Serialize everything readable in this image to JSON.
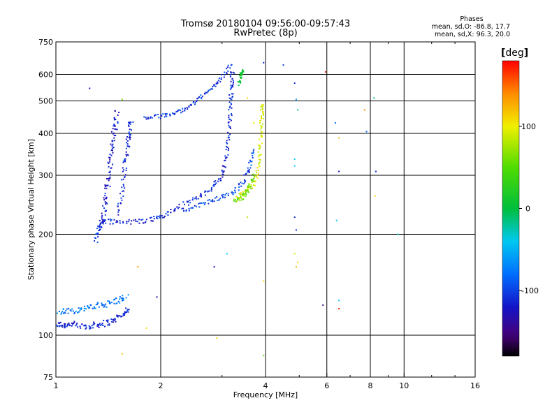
{
  "header": {
    "title_line1": "Tromsø 20180104 09:56:00-09:57:43",
    "title_line2": "RwPretec (8p)"
  },
  "phases_box": {
    "title": "Phases",
    "line_o": "mean, sd,O: -86.8, 17.7",
    "line_x": "mean, sd,X:  96.3, 20.0"
  },
  "colorbar": {
    "unit": "deg",
    "ticks": [
      {
        "label": "100",
        "value": 100
      },
      {
        "label": "0",
        "value": 0
      },
      {
        "label": "-100",
        "value": -100
      }
    ],
    "range": [
      -180,
      180
    ]
  },
  "chart_data": {
    "type": "scatter",
    "xlabel": "Frequency [MHz]",
    "ylabel": "Stationary phase Virtual Height [km]",
    "x_scale": "log",
    "y_scale": "log",
    "xlim": [
      1,
      16
    ],
    "ylim": [
      75,
      750
    ],
    "xticks": [
      {
        "label": "1",
        "value": 1
      },
      {
        "label": "2",
        "value": 2
      },
      {
        "label": "4",
        "value": 4
      },
      {
        "label": "6",
        "value": 6
      },
      {
        "label": "8",
        "value": 8
      },
      {
        "label": "10",
        "value": 10
      },
      {
        "label": "16",
        "value": 16
      }
    ],
    "yticks": [
      {
        "label": "75",
        "value": 75
      },
      {
        "label": "100",
        "value": 100
      },
      {
        "label": "200",
        "value": 200
      },
      {
        "label": "300",
        "value": 300
      },
      {
        "label": "400",
        "value": 400
      },
      {
        "label": "500",
        "value": 500
      },
      {
        "label": "600",
        "value": 600
      },
      {
        "label": "750",
        "value": 750
      }
    ],
    "grid": true,
    "color_encoding": "phase [deg], rainbow scale from -180 (black) to 180 (red)",
    "traces": [
      {
        "name": "",
        "phase": -115,
        "spread": 0.014,
        "points": [
          [
            1.0,
            108
          ],
          [
            1.05,
            107
          ],
          [
            1.1,
            108
          ],
          [
            1.2,
            106
          ],
          [
            1.28,
            107
          ],
          [
            1.35,
            108
          ],
          [
            1.45,
            110
          ],
          [
            1.55,
            115
          ],
          [
            1.62,
            120
          ]
        ]
      },
      {
        "name": "",
        "phase": -75,
        "spread": 0.014,
        "points": [
          [
            1.02,
            118
          ],
          [
            1.1,
            118
          ],
          [
            1.2,
            120
          ],
          [
            1.3,
            122
          ],
          [
            1.4,
            124
          ],
          [
            1.5,
            127
          ],
          [
            1.6,
            130
          ]
        ]
      },
      {
        "name": "",
        "phase": -110,
        "spread": 0.012,
        "points": [
          [
            1.3,
            190
          ],
          [
            1.33,
            210
          ],
          [
            1.36,
            220
          ],
          [
            1.5,
            218
          ],
          [
            1.7,
            218
          ],
          [
            1.9,
            222
          ],
          [
            2.05,
            228
          ],
          [
            2.25,
            240
          ],
          [
            2.5,
            255
          ],
          [
            2.75,
            270
          ],
          [
            2.95,
            290
          ],
          [
            3.05,
            320
          ],
          [
            3.12,
            370
          ],
          [
            3.16,
            430
          ],
          [
            3.18,
            500
          ],
          [
            3.2,
            560
          ],
          [
            3.22,
            620
          ]
        ]
      },
      {
        "name": "",
        "phase": -120,
        "spread": 0.016,
        "points": [
          [
            1.36,
            215
          ],
          [
            1.38,
            240
          ],
          [
            1.4,
            270
          ],
          [
            1.42,
            300
          ],
          [
            1.44,
            340
          ],
          [
            1.46,
            380
          ],
          [
            1.48,
            420
          ],
          [
            1.5,
            470
          ]
        ]
      },
      {
        "name": "",
        "phase": -110,
        "spread": 0.014,
        "points": [
          [
            1.5,
            230
          ],
          [
            1.55,
            270
          ],
          [
            1.58,
            320
          ],
          [
            1.6,
            360
          ],
          [
            1.62,
            400
          ],
          [
            1.65,
            440
          ]
        ]
      },
      {
        "name": "",
        "phase": -105,
        "spread": 0.01,
        "points": [
          [
            1.8,
            445
          ],
          [
            2.0,
            450
          ],
          [
            2.2,
            460
          ],
          [
            2.4,
            480
          ],
          [
            2.6,
            510
          ],
          [
            2.8,
            545
          ],
          [
            3.0,
            590
          ],
          [
            3.2,
            640
          ]
        ]
      },
      {
        "name": "",
        "phase": -100,
        "spread": 0.01,
        "points": [
          [
            2.3,
            235
          ],
          [
            2.6,
            245
          ],
          [
            2.9,
            255
          ],
          [
            3.2,
            265
          ],
          [
            3.45,
            285
          ],
          [
            3.6,
            320
          ],
          [
            3.7,
            360
          ]
        ]
      },
      {
        "name": "",
        "phase": 95,
        "spread": 0.012,
        "points": [
          [
            3.3,
            255
          ],
          [
            3.5,
            265
          ],
          [
            3.7,
            285
          ],
          [
            3.8,
            310
          ],
          [
            3.85,
            350
          ],
          [
            3.88,
            400
          ],
          [
            3.9,
            450
          ],
          [
            3.92,
            490
          ]
        ]
      },
      {
        "name": "",
        "phase": 55,
        "spread": 0.012,
        "points": [
          [
            3.25,
            250
          ],
          [
            3.45,
            260
          ],
          [
            3.6,
            275
          ],
          [
            3.7,
            300
          ]
        ]
      },
      {
        "name": "",
        "phase": 10,
        "spread": 0.008,
        "points": [
          [
            3.35,
            560
          ],
          [
            3.4,
            600
          ],
          [
            3.45,
            615
          ]
        ]
      }
    ],
    "sparse_points": [
      [
        1.25,
        545,
        -120
      ],
      [
        1.55,
        505,
        60
      ],
      [
        1.72,
        160,
        130
      ],
      [
        1.55,
        88,
        120
      ],
      [
        1.82,
        105,
        110
      ],
      [
        1.95,
        130,
        -140
      ],
      [
        2.85,
        160,
        -120
      ],
      [
        3.1,
        175,
        -40
      ],
      [
        3.55,
        225,
        80
      ],
      [
        3.95,
        145,
        110
      ],
      [
        3.95,
        650,
        -110
      ],
      [
        4.5,
        640,
        -100
      ],
      [
        4.85,
        565,
        -110
      ],
      [
        4.9,
        505,
        -60
      ],
      [
        4.95,
        470,
        -20
      ],
      [
        4.85,
        335,
        -40
      ],
      [
        4.85,
        320,
        -40
      ],
      [
        4.85,
        225,
        -110
      ],
      [
        4.9,
        206,
        -110
      ],
      [
        4.85,
        175,
        90
      ],
      [
        4.95,
        165,
        110
      ],
      [
        4.9,
        160,
        120
      ],
      [
        5.95,
        610,
        170
      ],
      [
        5.85,
        123,
        -150
      ],
      [
        6.35,
        430,
        -80
      ],
      [
        6.5,
        388,
        120
      ],
      [
        6.5,
        308,
        -120
      ],
      [
        6.4,
        220,
        -40
      ],
      [
        6.5,
        127,
        -40
      ],
      [
        6.5,
        120,
        170
      ],
      [
        7.7,
        470,
        140
      ],
      [
        7.8,
        405,
        -80
      ],
      [
        8.2,
        510,
        -20
      ],
      [
        8.3,
        308,
        -110
      ],
      [
        8.25,
        260,
        110
      ],
      [
        9.6,
        200,
        -30
      ],
      [
        3.55,
        510,
        110
      ],
      [
        3.7,
        430,
        100
      ],
      [
        2.9,
        98,
        110
      ],
      [
        3.95,
        87,
        50
      ]
    ]
  }
}
